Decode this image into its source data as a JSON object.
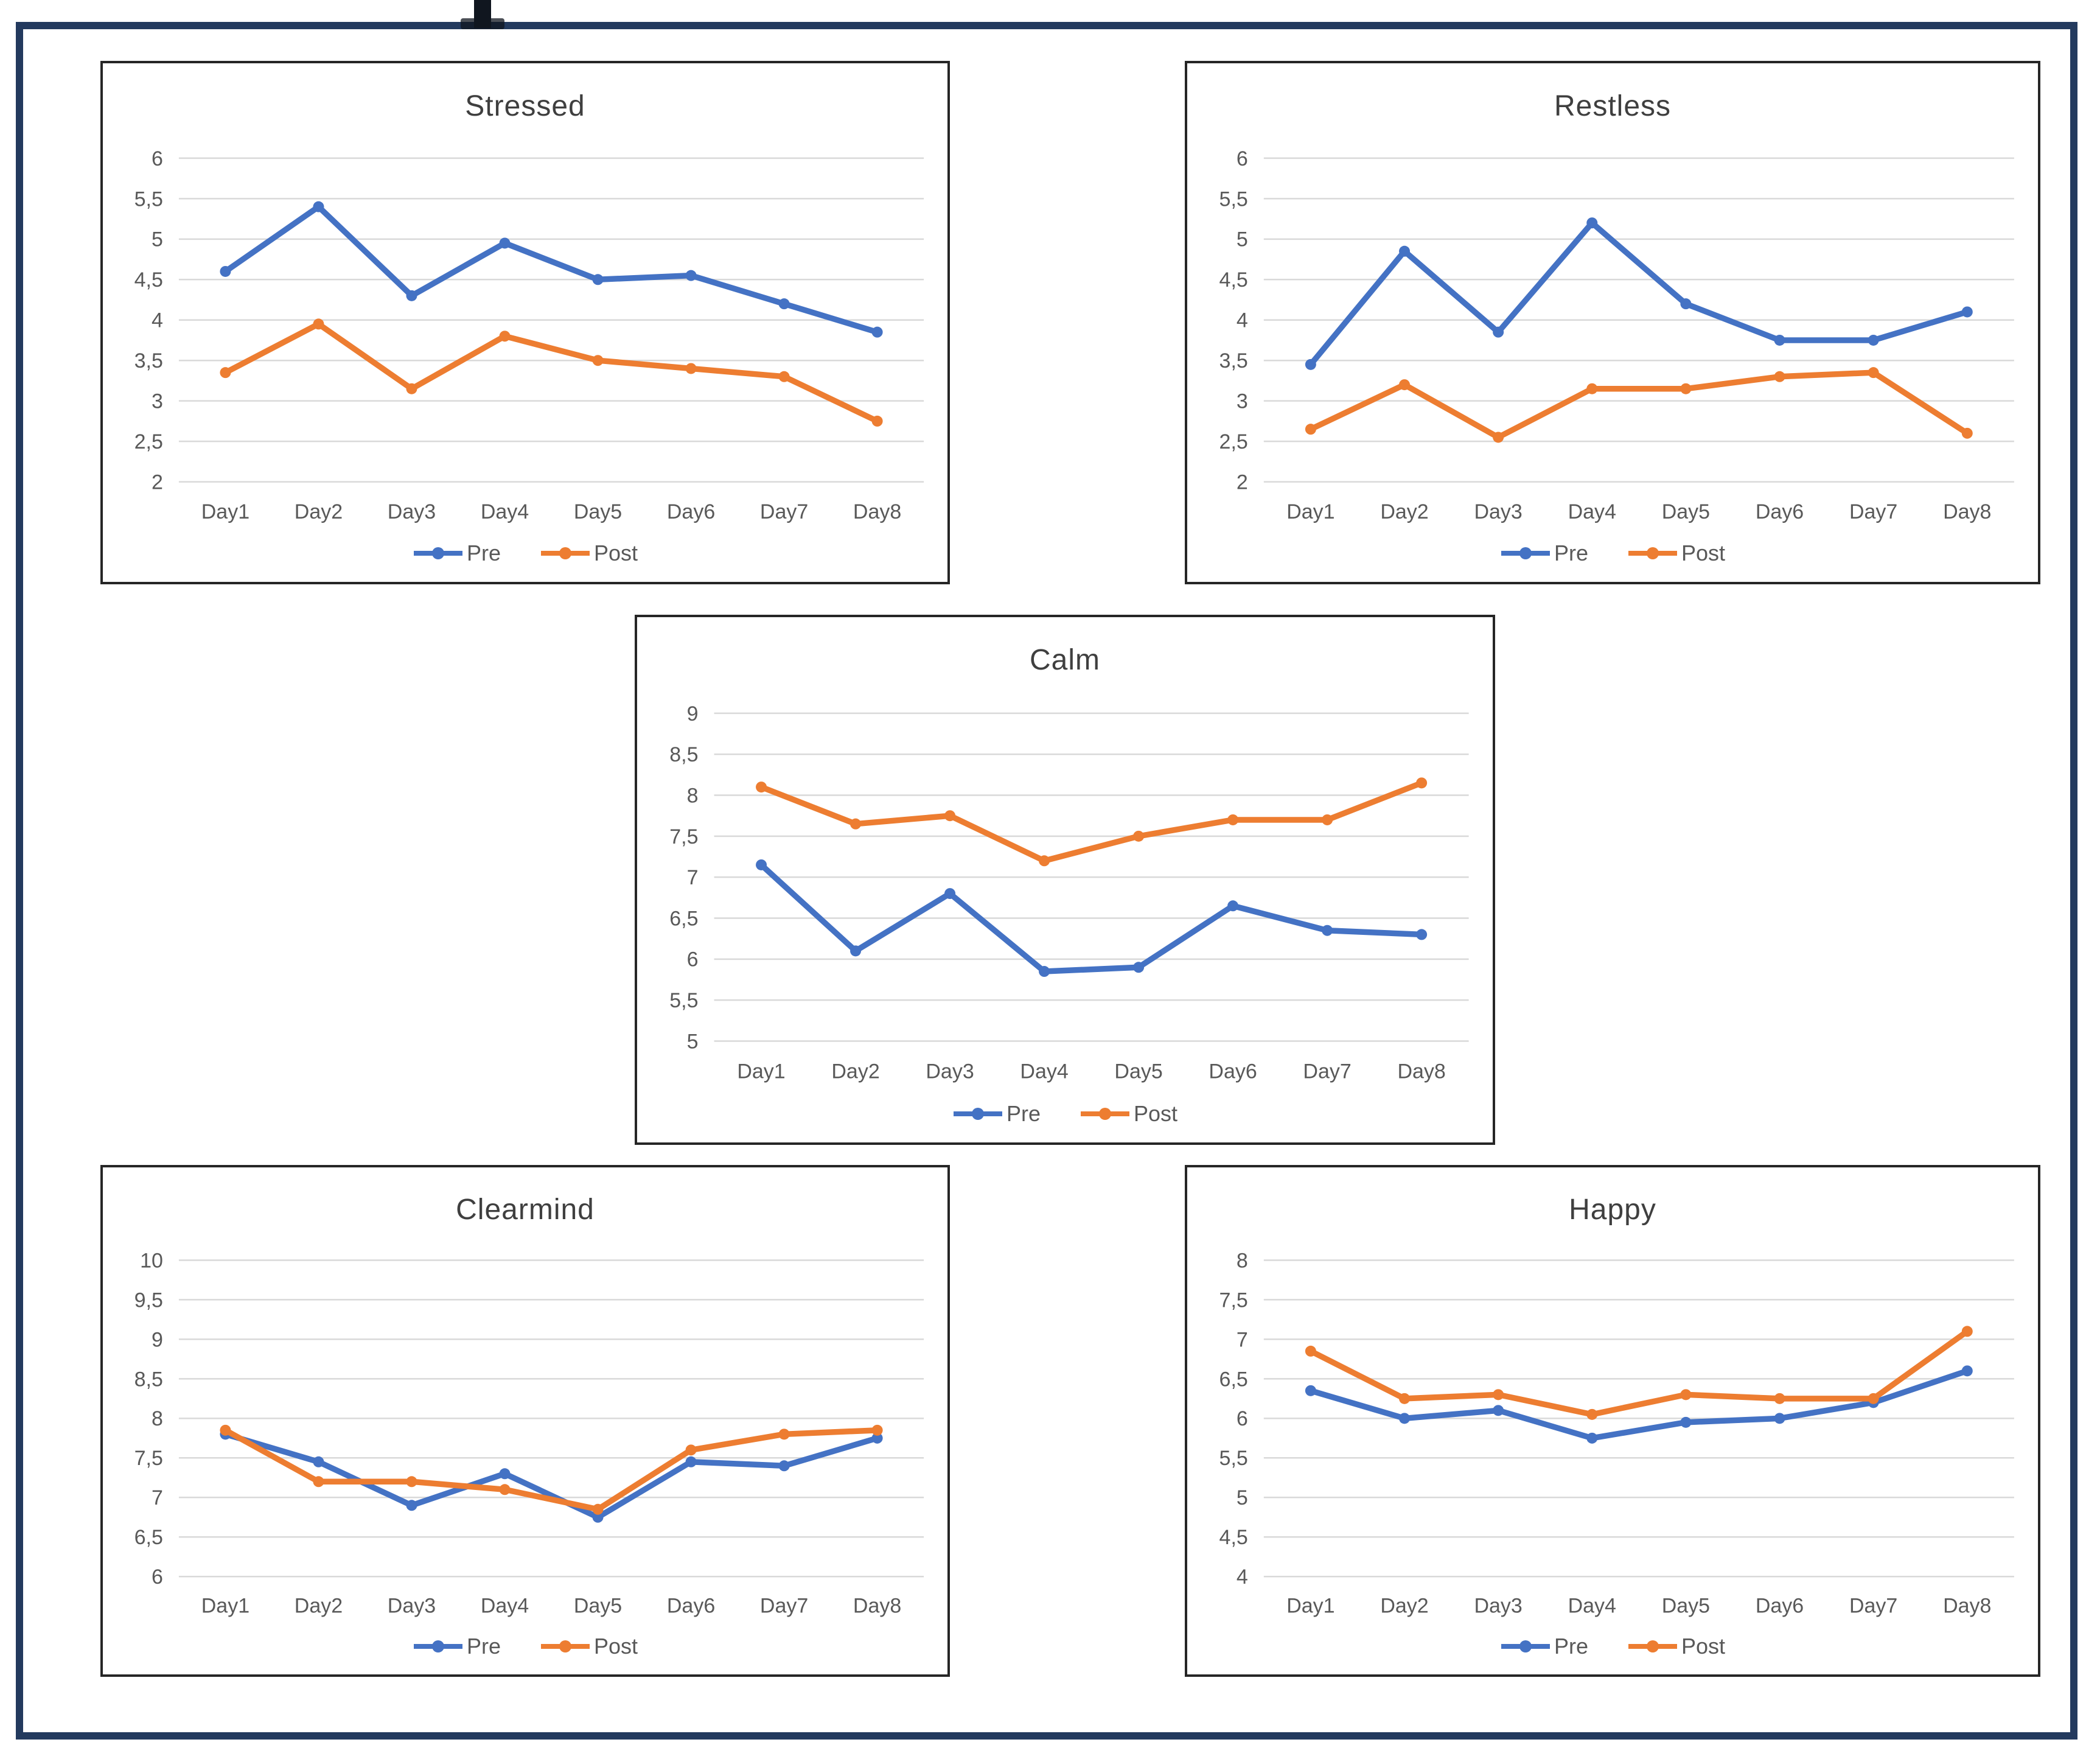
{
  "page": {
    "background": "#ffffff",
    "frame_color": "#233A5E",
    "cropped_text_fragment": "partial glyph descender cut off at top edge"
  },
  "styles": {
    "pre_color": "#4472C4",
    "post_color": "#ED7D31",
    "gridline_color": "#D9D9D9",
    "tick_label_color": "#595959",
    "title_color": "#3f3f3f",
    "chart_border_color": "#262626"
  },
  "chart_data": [
    {
      "id": "stressed",
      "type": "line",
      "title": "Stressed",
      "xlabel": "",
      "ylabel": "",
      "ylim": [
        2,
        6
      ],
      "grid": true,
      "legend_position": "bottom",
      "categories": [
        "Day1",
        "Day2",
        "Day3",
        "Day4",
        "Day5",
        "Day6",
        "Day7",
        "Day8"
      ],
      "yticks": [
        {
          "v": 6,
          "label": "6"
        },
        {
          "v": 5.5,
          "label": "5,5"
        },
        {
          "v": 5,
          "label": "5"
        },
        {
          "v": 4.5,
          "label": "4,5"
        },
        {
          "v": 4,
          "label": "4"
        },
        {
          "v": 3.5,
          "label": "3,5"
        },
        {
          "v": 3,
          "label": "3"
        },
        {
          "v": 2.5,
          "label": "2,5"
        },
        {
          "v": 2,
          "label": "2"
        }
      ],
      "series": [
        {
          "name": "Pre",
          "color": "#4472C4",
          "values": [
            4.6,
            5.4,
            4.3,
            4.95,
            4.5,
            4.55,
            4.2,
            3.85
          ]
        },
        {
          "name": "Post",
          "color": "#ED7D31",
          "values": [
            3.35,
            3.95,
            3.15,
            3.8,
            3.5,
            3.4,
            3.3,
            2.75
          ]
        }
      ]
    },
    {
      "id": "restless",
      "type": "line",
      "title": "Restless",
      "xlabel": "",
      "ylabel": "",
      "ylim": [
        2,
        6
      ],
      "grid": true,
      "legend_position": "bottom",
      "categories": [
        "Day1",
        "Day2",
        "Day3",
        "Day4",
        "Day5",
        "Day6",
        "Day7",
        "Day8"
      ],
      "yticks": [
        {
          "v": 6,
          "label": "6"
        },
        {
          "v": 5.5,
          "label": "5,5"
        },
        {
          "v": 5,
          "label": "5"
        },
        {
          "v": 4.5,
          "label": "4,5"
        },
        {
          "v": 4,
          "label": "4"
        },
        {
          "v": 3.5,
          "label": "3,5"
        },
        {
          "v": 3,
          "label": "3"
        },
        {
          "v": 2.5,
          "label": "2,5"
        },
        {
          "v": 2,
          "label": "2"
        }
      ],
      "series": [
        {
          "name": "Pre",
          "color": "#4472C4",
          "values": [
            3.45,
            4.85,
            3.85,
            5.2,
            4.2,
            3.75,
            3.75,
            4.1
          ]
        },
        {
          "name": "Post",
          "color": "#ED7D31",
          "values": [
            2.65,
            3.2,
            2.55,
            3.15,
            3.15,
            3.3,
            3.35,
            2.6
          ]
        }
      ]
    },
    {
      "id": "calm",
      "type": "line",
      "title": "Calm",
      "xlabel": "",
      "ylabel": "",
      "ylim": [
        5,
        9
      ],
      "grid": true,
      "legend_position": "bottom",
      "categories": [
        "Day1",
        "Day2",
        "Day3",
        "Day4",
        "Day5",
        "Day6",
        "Day7",
        "Day8"
      ],
      "yticks": [
        {
          "v": 9,
          "label": "9"
        },
        {
          "v": 8.5,
          "label": "8,5"
        },
        {
          "v": 8,
          "label": "8"
        },
        {
          "v": 7.5,
          "label": "7,5"
        },
        {
          "v": 7,
          "label": "7"
        },
        {
          "v": 6.5,
          "label": "6,5"
        },
        {
          "v": 6,
          "label": "6"
        },
        {
          "v": 5.5,
          "label": "5,5"
        },
        {
          "v": 5,
          "label": "5"
        }
      ],
      "series": [
        {
          "name": "Pre",
          "color": "#4472C4",
          "values": [
            7.15,
            6.1,
            6.8,
            5.85,
            5.9,
            6.65,
            6.35,
            6.3
          ]
        },
        {
          "name": "Post",
          "color": "#ED7D31",
          "values": [
            8.1,
            7.65,
            7.75,
            7.2,
            7.5,
            7.7,
            7.7,
            8.15
          ]
        }
      ]
    },
    {
      "id": "clearmind",
      "type": "line",
      "title": "Clearmind",
      "xlabel": "",
      "ylabel": "",
      "ylim": [
        6,
        10
      ],
      "grid": true,
      "legend_position": "bottom",
      "categories": [
        "Day1",
        "Day2",
        "Day3",
        "Day4",
        "Day5",
        "Day6",
        "Day7",
        "Day8"
      ],
      "yticks": [
        {
          "v": 10,
          "label": "10"
        },
        {
          "v": 9.5,
          "label": "9,5"
        },
        {
          "v": 9,
          "label": "9"
        },
        {
          "v": 8.5,
          "label": "8,5"
        },
        {
          "v": 8,
          "label": "8"
        },
        {
          "v": 7.5,
          "label": "7,5"
        },
        {
          "v": 7,
          "label": "7"
        },
        {
          "v": 6.5,
          "label": "6,5"
        },
        {
          "v": 6,
          "label": "6"
        }
      ],
      "series": [
        {
          "name": "Pre",
          "color": "#4472C4",
          "values": [
            7.8,
            7.45,
            6.9,
            7.3,
            6.75,
            7.45,
            7.4,
            7.75
          ]
        },
        {
          "name": "Post",
          "color": "#ED7D31",
          "values": [
            7.85,
            7.2,
            7.2,
            7.1,
            6.85,
            7.6,
            7.8,
            7.85
          ]
        }
      ]
    },
    {
      "id": "happy",
      "type": "line",
      "title": "Happy",
      "xlabel": "",
      "ylabel": "",
      "ylim": [
        4,
        8
      ],
      "grid": true,
      "legend_position": "bottom",
      "categories": [
        "Day1",
        "Day2",
        "Day3",
        "Day4",
        "Day5",
        "Day6",
        "Day7",
        "Day8"
      ],
      "yticks": [
        {
          "v": 8,
          "label": "8"
        },
        {
          "v": 7.5,
          "label": "7,5"
        },
        {
          "v": 7,
          "label": "7"
        },
        {
          "v": 6.5,
          "label": "6,5"
        },
        {
          "v": 6,
          "label": "6"
        },
        {
          "v": 5.5,
          "label": "5,5"
        },
        {
          "v": 5,
          "label": "5"
        },
        {
          "v": 4.5,
          "label": "4,5"
        },
        {
          "v": 4,
          "label": "4"
        }
      ],
      "series": [
        {
          "name": "Pre",
          "color": "#4472C4",
          "values": [
            6.35,
            6.0,
            6.1,
            5.75,
            5.95,
            6.0,
            6.2,
            6.6
          ]
        },
        {
          "name": "Post",
          "color": "#ED7D31",
          "values": [
            6.85,
            6.25,
            6.3,
            6.05,
            6.3,
            6.25,
            6.25,
            7.1
          ]
        }
      ]
    }
  ]
}
